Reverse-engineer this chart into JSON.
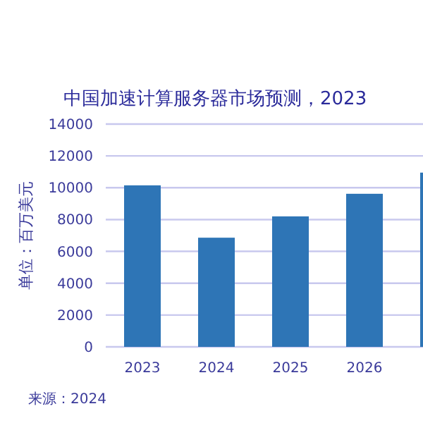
{
  "chart_data": {
    "type": "bar",
    "title": "中国加速计算服务器市场预测，2023",
    "ylabel": "单位：百万美元",
    "categories": [
      "2023",
      "2024",
      "2025",
      "2026",
      null
    ],
    "values": [
      10150,
      6860,
      8200,
      9620,
      10950
    ],
    "color": "#2e75b6",
    "ylim": [
      0,
      14000
    ],
    "yticks": [
      0,
      2000,
      4000,
      6000,
      8000,
      10000,
      12000,
      14000
    ],
    "grid": "y",
    "annotations": [
      "来源：2024"
    ]
  }
}
